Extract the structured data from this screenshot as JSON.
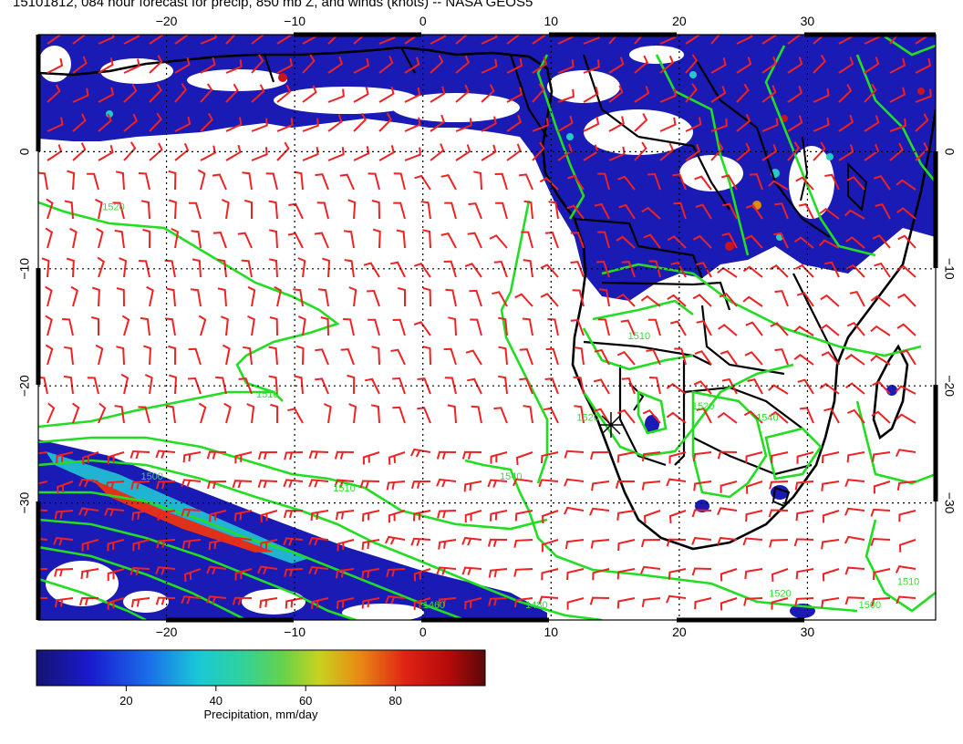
{
  "title": "15101812, 084 hour forecast for precip, 850 mb Z, and winds (knots) -- NASA GEOS5",
  "map": {
    "lon_range": [
      -30,
      40
    ],
    "lat_range": [
      -40,
      10
    ],
    "lon_ticks": [
      {
        "value": -20,
        "label": "−20"
      },
      {
        "value": -10,
        "label": "−10"
      },
      {
        "value": 0,
        "label": "0"
      },
      {
        "value": 10,
        "label": "10"
      },
      {
        "value": 20,
        "label": "20"
      },
      {
        "value": 30,
        "label": "30"
      }
    ],
    "lat_ticks": [
      {
        "value": 0,
        "label": "0"
      },
      {
        "value": -10,
        "label": "−10"
      },
      {
        "value": -20,
        "label": "−20"
      },
      {
        "value": -30,
        "label": "−30"
      }
    ],
    "grid_lines": "dotted",
    "colors": {
      "contour": "#22dd22",
      "wind_barb": "#ee2222",
      "coastline": "#000000",
      "precip_low": "#1a1aa0"
    },
    "contour_labels": [
      {
        "text": "1520",
        "lon": -25,
        "lat": -5
      },
      {
        "text": "1510",
        "lon": -13,
        "lat": -21
      },
      {
        "text": "1500",
        "lon": -22,
        "lat": -28
      },
      {
        "text": "1510",
        "lon": -7,
        "lat": -29
      },
      {
        "text": "1540",
        "lon": 6,
        "lat": -28
      },
      {
        "text": "1520",
        "lon": 12,
        "lat": -23
      },
      {
        "text": "1510",
        "lon": 16,
        "lat": -16
      },
      {
        "text": "1520",
        "lon": 21,
        "lat": -22
      },
      {
        "text": "1540",
        "lon": 26,
        "lat": -23
      },
      {
        "text": "1520",
        "lon": 27,
        "lat": -38
      },
      {
        "text": "1500",
        "lon": 34,
        "lat": -39
      },
      {
        "text": "1510",
        "lon": 37,
        "lat": -37
      },
      {
        "text": "1480",
        "lon": 8,
        "lat": -39
      },
      {
        "text": "1460",
        "lon": 0,
        "lat": -39
      }
    ]
  },
  "colorbar": {
    "label": "Precipitation, mm/day",
    "ticks": [
      {
        "value": 20,
        "label": "20"
      },
      {
        "value": 40,
        "label": "40"
      },
      {
        "value": 60,
        "label": "60"
      },
      {
        "value": 80,
        "label": "80"
      }
    ],
    "range": [
      0,
      100
    ]
  }
}
